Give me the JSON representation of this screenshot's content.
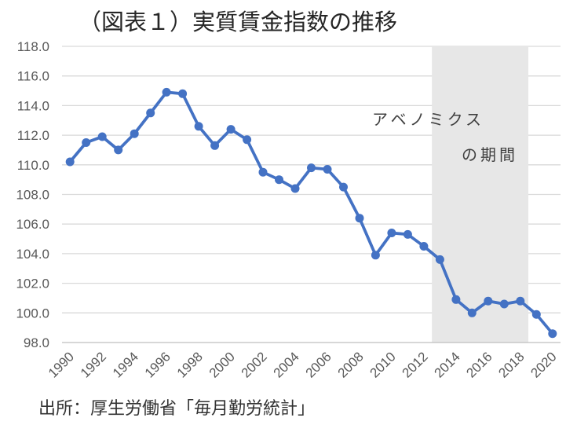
{
  "page": {
    "title": "（図表１）実質賃金指数の推移",
    "source_note": "出所：厚生労働省「毎月勤労統計」"
  },
  "annotation": {
    "line1": "アベノミクス",
    "line2": "の期間"
  },
  "colors": {
    "line": "#4472C4",
    "marker": "#4472C4",
    "gridline": "#D9D9D9",
    "axis_line": "#BFBFBF",
    "tick_label": "#595959",
    "shaded_band": "#E7E7E7",
    "title_text": "#262626",
    "annotation_text": "#404040",
    "source_text": "#333333"
  },
  "chart_data": {
    "type": "line",
    "title": "（図表１）実質賃金指数の推移",
    "xlabel": "",
    "ylabel": "",
    "x": [
      1990,
      1991,
      1992,
      1993,
      1994,
      1995,
      1996,
      1997,
      1998,
      1999,
      2000,
      2001,
      2002,
      2003,
      2004,
      2005,
      2006,
      2007,
      2008,
      2009,
      2010,
      2011,
      2012,
      2013,
      2014,
      2015,
      2016,
      2017,
      2018,
      2019,
      2020
    ],
    "series": [
      {
        "name": "実質賃金指数",
        "values": [
          110.2,
          111.5,
          111.9,
          111.0,
          112.1,
          113.5,
          114.9,
          114.8,
          112.6,
          111.3,
          112.4,
          111.7,
          109.5,
          109.0,
          108.4,
          109.8,
          109.7,
          108.5,
          106.4,
          103.9,
          105.4,
          105.3,
          104.5,
          103.6,
          100.9,
          100.0,
          100.8,
          100.6,
          100.8,
          99.9,
          98.6
        ]
      }
    ],
    "ylim": [
      98.0,
      118.0
    ],
    "ytick_step": 2.0,
    "ytick_labels": [
      "98.0",
      "100.0",
      "102.0",
      "104.0",
      "106.0",
      "108.0",
      "110.0",
      "112.0",
      "114.0",
      "116.0",
      "118.0"
    ],
    "xtick_labels": [
      "1990",
      "1992",
      "1994",
      "1996",
      "1998",
      "2000",
      "2002",
      "2004",
      "2006",
      "2008",
      "2010",
      "2012",
      "2014",
      "2016",
      "2018",
      "2020"
    ],
    "grid": "horizontal",
    "legend": "none",
    "marker": "circle",
    "shaded_region": {
      "start_year": 2013,
      "end_year": 2018,
      "label": "アベノミクス の期間"
    }
  }
}
